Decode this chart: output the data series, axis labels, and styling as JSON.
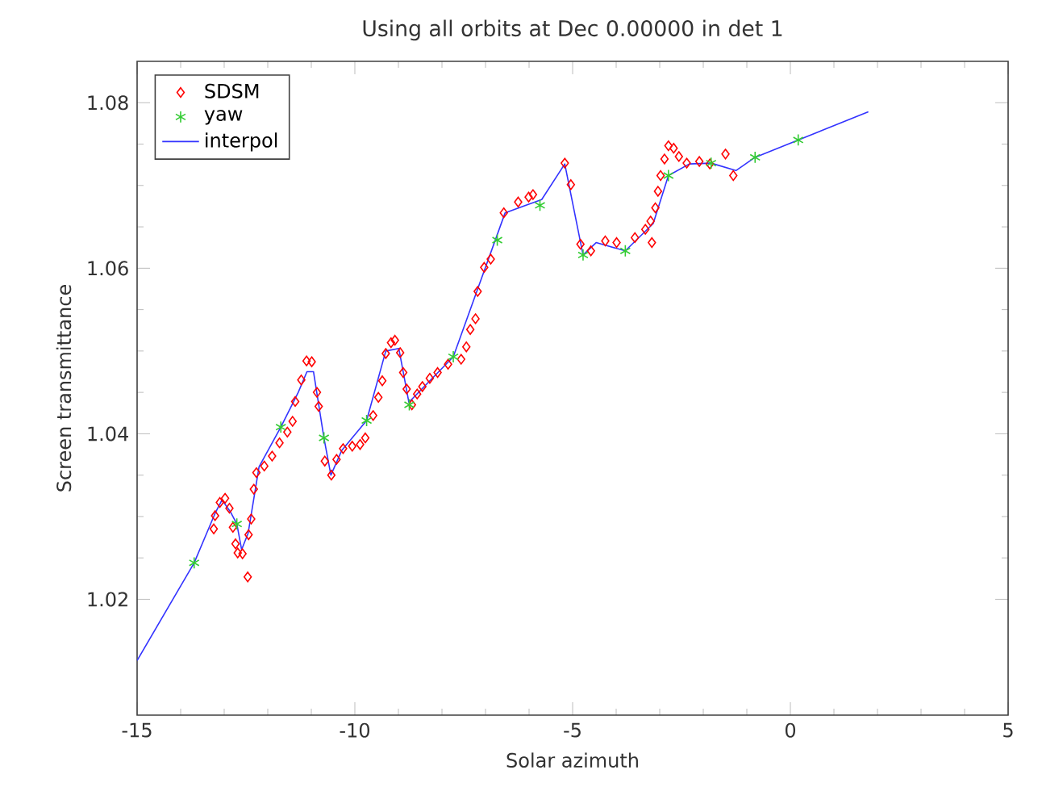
{
  "chart_data": {
    "type": "scatter",
    "title": "Using all orbits at Dec 0.00000 in det 1",
    "xlabel": "Solar azimuth",
    "ylabel": "Screen transmittance",
    "xlim": [
      -15,
      5
    ],
    "ylim": [
      1.006,
      1.085
    ],
    "xticks": [
      -15,
      -10,
      -5,
      0,
      5
    ],
    "yticks": [
      1.02,
      1.04,
      1.06,
      1.08
    ],
    "grid": false,
    "legend": "top left",
    "series": [
      {
        "name": "SDSM",
        "marker": "diamond",
        "color": "#ff0000",
        "x": [
          -13.24,
          -13.21,
          -13.1,
          -12.98,
          -12.88,
          -12.8,
          -12.74,
          -12.69,
          -12.58,
          -12.46,
          -12.44,
          -12.38,
          -12.32,
          -12.26,
          -12.08,
          -11.9,
          -11.73,
          -11.55,
          -11.43,
          -11.37,
          -11.23,
          -11.11,
          -10.99,
          -10.87,
          -10.83,
          -10.69,
          -10.54,
          -10.42,
          -10.27,
          -10.06,
          -9.88,
          -9.76,
          -9.58,
          -9.46,
          -9.37,
          -9.29,
          -9.17,
          -9.08,
          -8.96,
          -8.89,
          -8.81,
          -8.69,
          -8.57,
          -8.45,
          -8.28,
          -8.1,
          -7.86,
          -7.56,
          -7.44,
          -7.35,
          -7.23,
          -7.18,
          -7.03,
          -6.88,
          -6.58,
          -6.25,
          -6.01,
          -5.91,
          -5.18,
          -5.04,
          -4.82,
          -4.58,
          -4.25,
          -3.99,
          -3.57,
          -3.33,
          -3.21,
          -3.18,
          -3.1,
          -3.04,
          -2.98,
          -2.89,
          -2.8,
          -2.68,
          -2.56,
          -2.38,
          -2.09,
          -1.85,
          -1.49,
          -1.31
        ],
        "values": [
          1.0285,
          1.0301,
          1.0317,
          1.0322,
          1.031,
          1.0287,
          1.0267,
          1.0256,
          1.0255,
          1.0227,
          1.0278,
          1.0297,
          1.0333,
          1.0353,
          1.0361,
          1.0373,
          1.0389,
          1.0402,
          1.0415,
          1.0439,
          1.0465,
          1.0488,
          1.0487,
          1.045,
          1.0433,
          1.0367,
          1.035,
          1.0369,
          1.0382,
          1.0385,
          1.0387,
          1.0395,
          1.0422,
          1.0444,
          1.0464,
          1.0497,
          1.051,
          1.0513,
          1.0498,
          1.0474,
          1.0454,
          1.0435,
          1.0448,
          1.0457,
          1.0467,
          1.0474,
          1.0484,
          1.049,
          1.0505,
          1.0526,
          1.0539,
          1.0572,
          1.0601,
          1.0611,
          1.0667,
          1.068,
          1.0686,
          1.0689,
          1.0727,
          1.0701,
          1.0629,
          1.0621,
          1.0633,
          1.0631,
          1.0637,
          1.0647,
          1.0657,
          1.0631,
          1.0673,
          1.0693,
          1.0712,
          1.0732,
          1.0748,
          1.0745,
          1.0735,
          1.0727,
          1.0729,
          1.0726,
          1.0738,
          1.0712
        ]
      },
      {
        "name": "yaw",
        "marker": "cross",
        "color": "#33cc33",
        "x": [
          -13.69,
          -12.71,
          -11.7,
          -10.71,
          -9.73,
          -8.75,
          -7.74,
          -6.73,
          -5.75,
          -4.76,
          -3.79,
          -2.8,
          -1.82,
          -0.81,
          0.18
        ],
        "values": [
          1.0244,
          1.0291,
          1.0408,
          1.0395,
          1.0416,
          1.0435,
          1.0493,
          1.0634,
          1.0676,
          1.0616,
          1.0621,
          1.0712,
          1.0727,
          1.0734,
          1.0755
        ]
      },
      {
        "name": "interpol",
        "type": "line",
        "marker": "none",
        "line_style": "solid",
        "color": "#3333ff",
        "x": [
          -15,
          -13.69,
          -13.2,
          -13.05,
          -12.85,
          -12.71,
          -12.6,
          -12.45,
          -12.2,
          -11.7,
          -11.3,
          -11.1,
          -10.95,
          -10.71,
          -10.55,
          -10.3,
          -9.73,
          -9.29,
          -8.99,
          -8.76,
          -7.74,
          -7.2,
          -6.55,
          -5.71,
          -5.18,
          -4.76,
          -4.46,
          -3.79,
          -3.15,
          -2.8,
          -2.32,
          -1.82,
          -1.25,
          -0.81,
          0.18,
          1.79
        ],
        "values": [
          1.0126,
          1.0244,
          1.0305,
          1.032,
          1.0305,
          1.0291,
          1.026,
          1.028,
          1.036,
          1.0408,
          1.045,
          1.0475,
          1.0475,
          1.0395,
          1.035,
          1.038,
          1.0416,
          1.05,
          1.0503,
          1.0438,
          1.0493,
          1.0572,
          1.0667,
          1.0683,
          1.0726,
          1.0616,
          1.0631,
          1.0621,
          1.0654,
          1.0712,
          1.0726,
          1.0727,
          1.0718,
          1.0734,
          1.0755,
          1.0789
        ]
      }
    ]
  }
}
